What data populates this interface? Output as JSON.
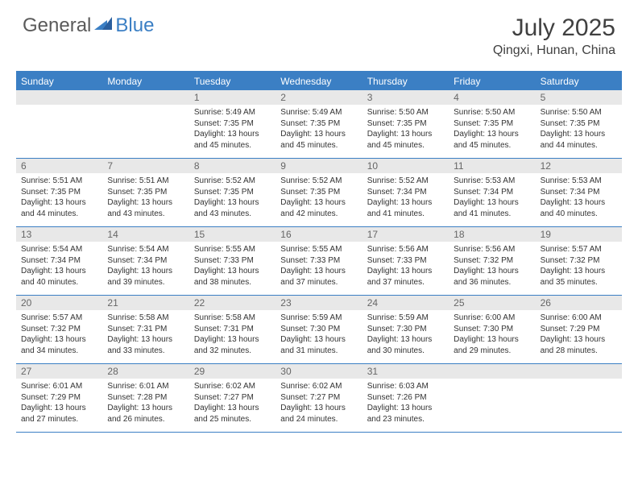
{
  "logo": {
    "part1": "General",
    "part2": "Blue"
  },
  "title": "July 2025",
  "location": "Qingxi, Hunan, China",
  "accent_color": "#3b7fc4",
  "header_bg": "#e8e8e8",
  "weekdays": [
    "Sunday",
    "Monday",
    "Tuesday",
    "Wednesday",
    "Thursday",
    "Friday",
    "Saturday"
  ],
  "weeks": [
    [
      null,
      null,
      {
        "n": "1",
        "sr": "5:49 AM",
        "ss": "7:35 PM",
        "dl": "13 hours and 45 minutes."
      },
      {
        "n": "2",
        "sr": "5:49 AM",
        "ss": "7:35 PM",
        "dl": "13 hours and 45 minutes."
      },
      {
        "n": "3",
        "sr": "5:50 AM",
        "ss": "7:35 PM",
        "dl": "13 hours and 45 minutes."
      },
      {
        "n": "4",
        "sr": "5:50 AM",
        "ss": "7:35 PM",
        "dl": "13 hours and 45 minutes."
      },
      {
        "n": "5",
        "sr": "5:50 AM",
        "ss": "7:35 PM",
        "dl": "13 hours and 44 minutes."
      }
    ],
    [
      {
        "n": "6",
        "sr": "5:51 AM",
        "ss": "7:35 PM",
        "dl": "13 hours and 44 minutes."
      },
      {
        "n": "7",
        "sr": "5:51 AM",
        "ss": "7:35 PM",
        "dl": "13 hours and 43 minutes."
      },
      {
        "n": "8",
        "sr": "5:52 AM",
        "ss": "7:35 PM",
        "dl": "13 hours and 43 minutes."
      },
      {
        "n": "9",
        "sr": "5:52 AM",
        "ss": "7:35 PM",
        "dl": "13 hours and 42 minutes."
      },
      {
        "n": "10",
        "sr": "5:52 AM",
        "ss": "7:34 PM",
        "dl": "13 hours and 41 minutes."
      },
      {
        "n": "11",
        "sr": "5:53 AM",
        "ss": "7:34 PM",
        "dl": "13 hours and 41 minutes."
      },
      {
        "n": "12",
        "sr": "5:53 AM",
        "ss": "7:34 PM",
        "dl": "13 hours and 40 minutes."
      }
    ],
    [
      {
        "n": "13",
        "sr": "5:54 AM",
        "ss": "7:34 PM",
        "dl": "13 hours and 40 minutes."
      },
      {
        "n": "14",
        "sr": "5:54 AM",
        "ss": "7:34 PM",
        "dl": "13 hours and 39 minutes."
      },
      {
        "n": "15",
        "sr": "5:55 AM",
        "ss": "7:33 PM",
        "dl": "13 hours and 38 minutes."
      },
      {
        "n": "16",
        "sr": "5:55 AM",
        "ss": "7:33 PM",
        "dl": "13 hours and 37 minutes."
      },
      {
        "n": "17",
        "sr": "5:56 AM",
        "ss": "7:33 PM",
        "dl": "13 hours and 37 minutes."
      },
      {
        "n": "18",
        "sr": "5:56 AM",
        "ss": "7:32 PM",
        "dl": "13 hours and 36 minutes."
      },
      {
        "n": "19",
        "sr": "5:57 AM",
        "ss": "7:32 PM",
        "dl": "13 hours and 35 minutes."
      }
    ],
    [
      {
        "n": "20",
        "sr": "5:57 AM",
        "ss": "7:32 PM",
        "dl": "13 hours and 34 minutes."
      },
      {
        "n": "21",
        "sr": "5:58 AM",
        "ss": "7:31 PM",
        "dl": "13 hours and 33 minutes."
      },
      {
        "n": "22",
        "sr": "5:58 AM",
        "ss": "7:31 PM",
        "dl": "13 hours and 32 minutes."
      },
      {
        "n": "23",
        "sr": "5:59 AM",
        "ss": "7:30 PM",
        "dl": "13 hours and 31 minutes."
      },
      {
        "n": "24",
        "sr": "5:59 AM",
        "ss": "7:30 PM",
        "dl": "13 hours and 30 minutes."
      },
      {
        "n": "25",
        "sr": "6:00 AM",
        "ss": "7:30 PM",
        "dl": "13 hours and 29 minutes."
      },
      {
        "n": "26",
        "sr": "6:00 AM",
        "ss": "7:29 PM",
        "dl": "13 hours and 28 minutes."
      }
    ],
    [
      {
        "n": "27",
        "sr": "6:01 AM",
        "ss": "7:29 PM",
        "dl": "13 hours and 27 minutes."
      },
      {
        "n": "28",
        "sr": "6:01 AM",
        "ss": "7:28 PM",
        "dl": "13 hours and 26 minutes."
      },
      {
        "n": "29",
        "sr": "6:02 AM",
        "ss": "7:27 PM",
        "dl": "13 hours and 25 minutes."
      },
      {
        "n": "30",
        "sr": "6:02 AM",
        "ss": "7:27 PM",
        "dl": "13 hours and 24 minutes."
      },
      {
        "n": "31",
        "sr": "6:03 AM",
        "ss": "7:26 PM",
        "dl": "13 hours and 23 minutes."
      },
      null,
      null
    ]
  ],
  "labels": {
    "sunrise": "Sunrise: ",
    "sunset": "Sunset: ",
    "daylight": "Daylight: "
  }
}
